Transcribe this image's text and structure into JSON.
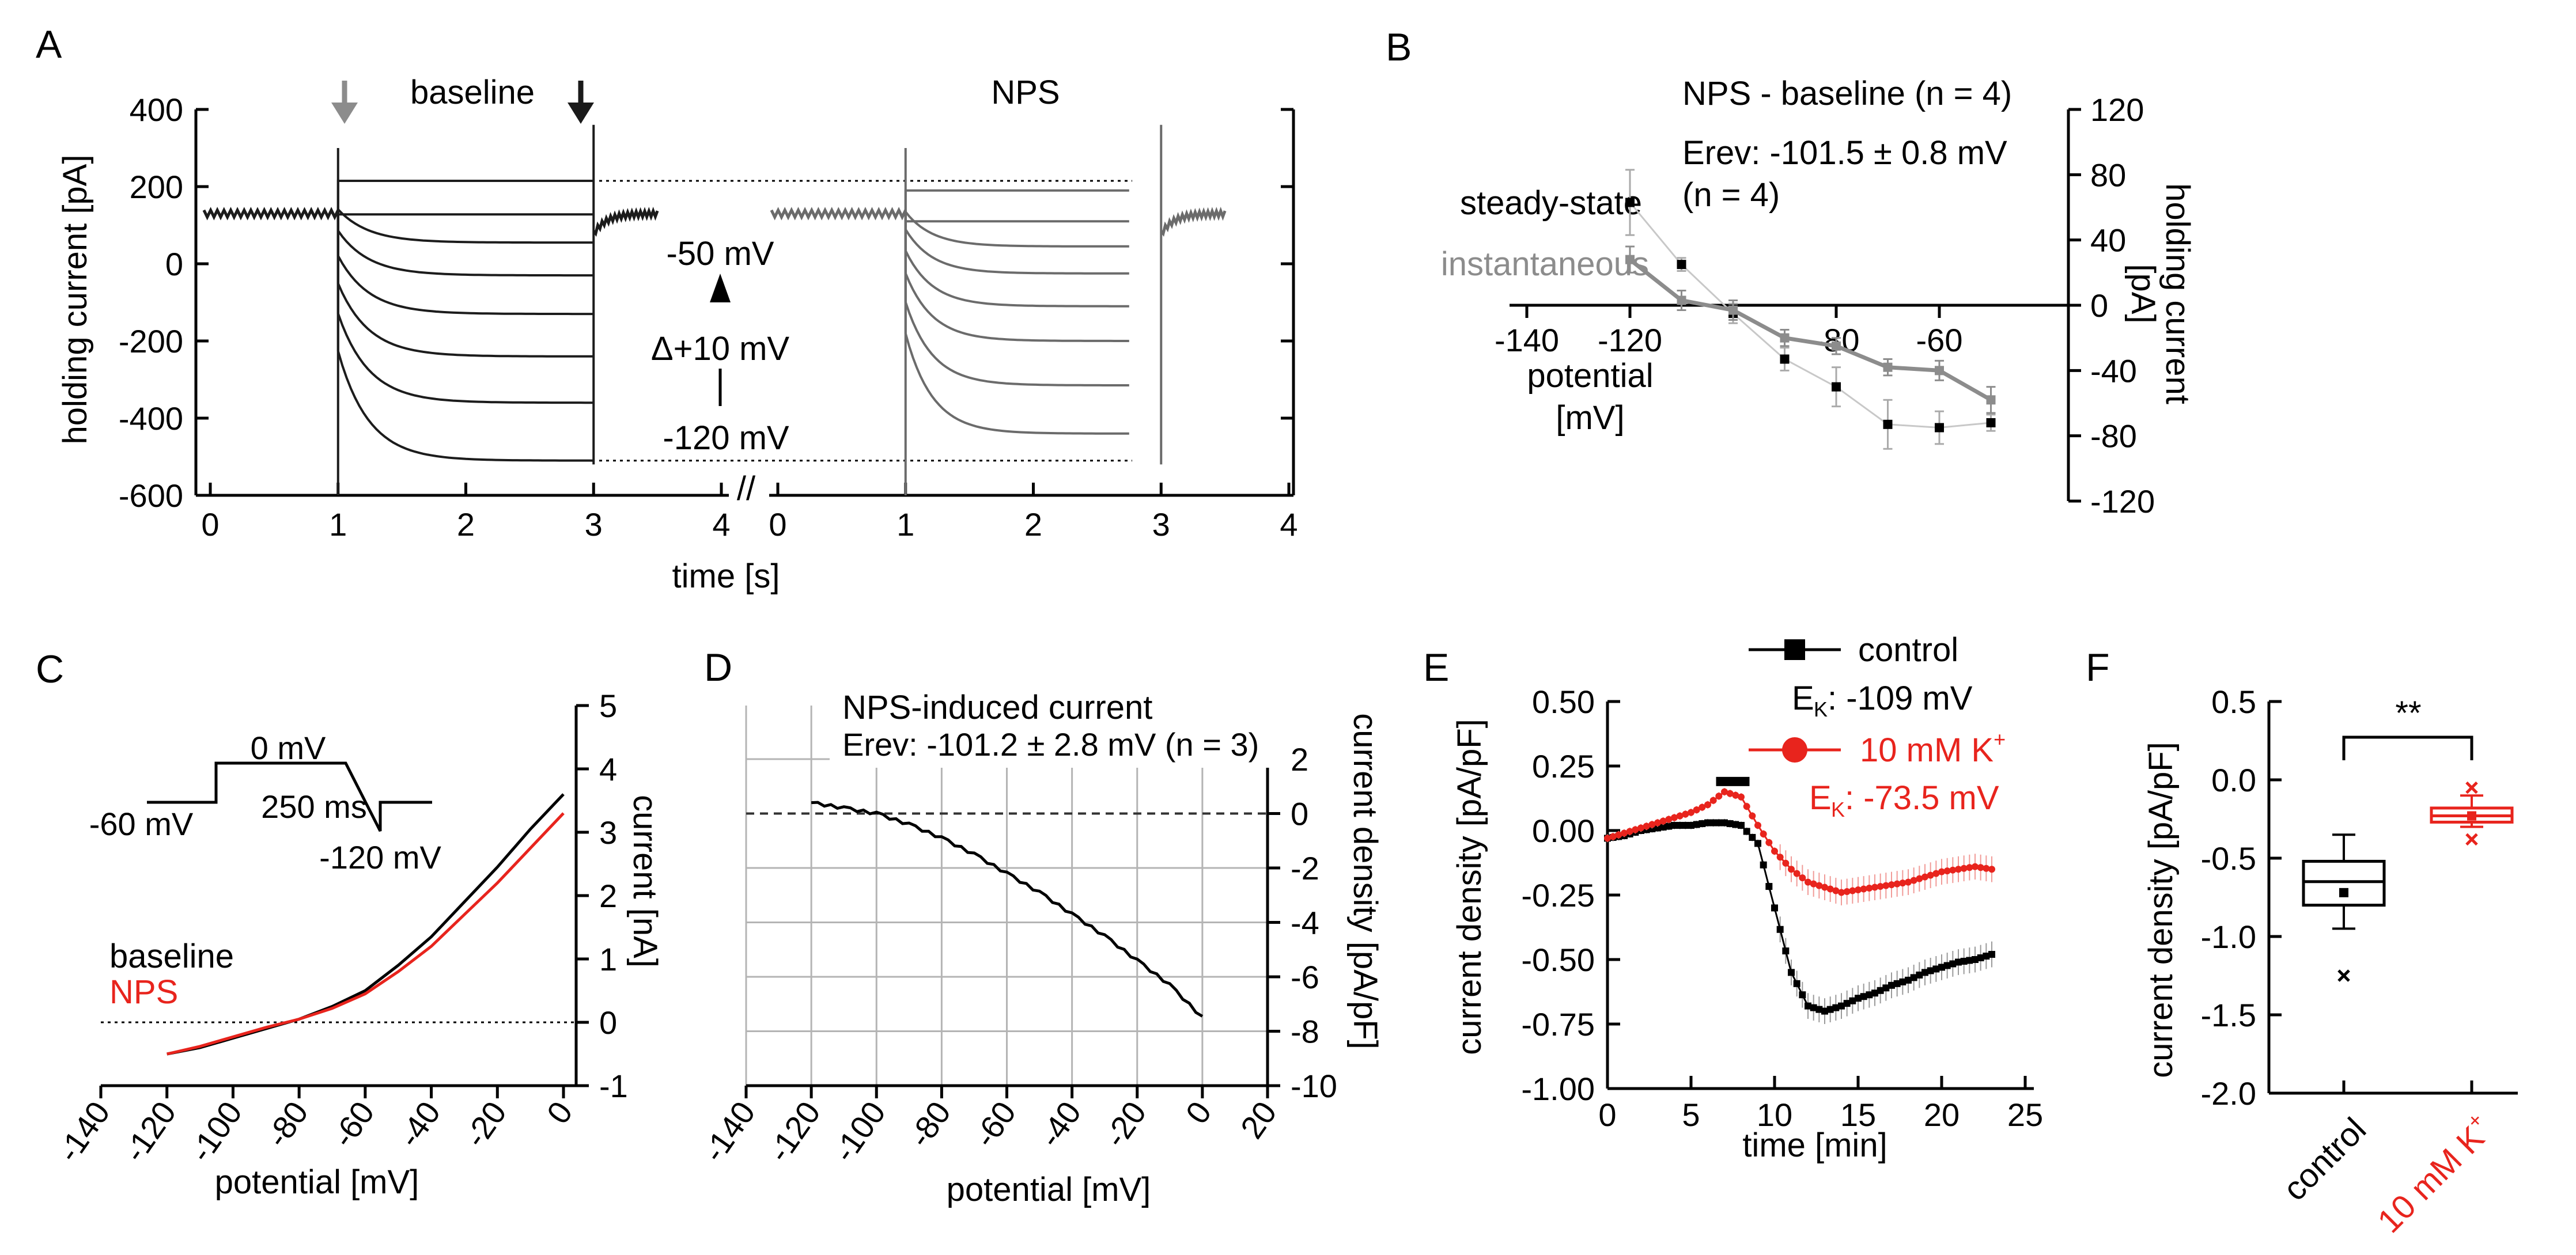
{
  "figure": {
    "panels": {
      "a": "A",
      "b": "B",
      "c": "C",
      "d": "D",
      "e": "E",
      "f": "F"
    }
  },
  "chart_data": [
    {
      "panel": "A",
      "type": "line",
      "title_left": "baseline",
      "title_right": "NPS",
      "xlabel": "time [s]",
      "ylabel": "holding current [pA]",
      "xlim": [
        0,
        4
      ],
      "ylim": [
        -600,
        400
      ],
      "xticks": [
        "0",
        "1",
        "2",
        "3",
        "4"
      ],
      "yticks": [
        "400",
        "200",
        "0",
        "-200",
        "-400",
        "-600"
      ],
      "step_start_s": 1,
      "step_end_s": 3,
      "holding_level_pA": 130,
      "baseline_steady_pA": [
        215,
        128,
        55,
        -30,
        -130,
        -240,
        -360,
        -510
      ],
      "nps_steady_pA": [
        190,
        110,
        45,
        -25,
        -110,
        -200,
        -315,
        -440
      ],
      "protocol_annotation": {
        "top": "-50 mV",
        "step": "Δ+10 mV",
        "bottom": "-120 mV"
      },
      "axis_break": "//",
      "arrow_colors": {
        "baseline": "#8c8c8c",
        "nps": "#1a1a1a"
      }
    },
    {
      "panel": "B",
      "type": "line",
      "title": "NPS - baseline (n = 4)",
      "annotation_erev": "Erev: -101.5 ± 0.8 mV",
      "annotation_n": "(n = 4)",
      "xlabel_line1": "potential",
      "xlabel_line2": "[mV]",
      "ylabel_line1": "holding current",
      "ylabel_line2": "[pA]",
      "xlim": [
        -140,
        -40
      ],
      "ylim": [
        -120,
        120
      ],
      "xticks": [
        "-140",
        "-120",
        "-80",
        "-60"
      ],
      "yticks": [
        "120",
        "80",
        "40",
        "0",
        "-40",
        "-80",
        "-120"
      ],
      "series": [
        {
          "name": "steady-state",
          "color": "#000000",
          "x": [
            -120,
            -110,
            -100,
            -90,
            -80,
            -70,
            -60,
            -50
          ],
          "y": [
            63,
            25,
            -5,
            -33,
            -50,
            -73,
            -75,
            -72
          ],
          "err": [
            20,
            4,
            6,
            7,
            12,
            15,
            10,
            5
          ]
        },
        {
          "name": "instantaneous",
          "color": "#8c8c8c",
          "x": [
            -120,
            -110,
            -100,
            -90,
            -80,
            -70,
            -60,
            -50
          ],
          "y": [
            28,
            3,
            -3,
            -20,
            -25,
            -38,
            -40,
            -58
          ],
          "err": [
            8,
            6,
            6,
            5,
            5,
            5,
            6,
            8
          ]
        }
      ]
    },
    {
      "panel": "C",
      "type": "line",
      "xlabel": "potential [mV]",
      "ylabel": "current [nA]",
      "xlim": [
        -140,
        0
      ],
      "ylim": [
        -1,
        5
      ],
      "xticks": [
        "-140",
        "-120",
        "-100",
        "-80",
        "-60",
        "-40",
        "-20",
        "0"
      ],
      "yticks": [
        "5",
        "4",
        "3",
        "2",
        "1",
        "0",
        "-1"
      ],
      "protocol_labels": {
        "hold": "-60 mV",
        "step": "0 mV",
        "duration": "250 ms",
        "end": "-120 mV"
      },
      "series": [
        {
          "name": "baseline",
          "color": "#000000",
          "x": [
            -120,
            -110,
            -100,
            -90,
            -80,
            -70,
            -60,
            -50,
            -40,
            -30,
            -20,
            -10,
            0
          ],
          "y": [
            -0.5,
            -0.4,
            -0.25,
            -0.1,
            0.05,
            0.25,
            0.5,
            0.9,
            1.35,
            1.9,
            2.45,
            3.05,
            3.6
          ]
        },
        {
          "name": "NPS",
          "color": "#e8241d",
          "x": [
            -120,
            -110,
            -100,
            -90,
            -80,
            -70,
            -60,
            -50,
            -40,
            -30,
            -20,
            -10,
            0
          ],
          "y": [
            -0.5,
            -0.38,
            -0.23,
            -0.08,
            0.05,
            0.22,
            0.45,
            0.8,
            1.2,
            1.7,
            2.2,
            2.75,
            3.3
          ]
        }
      ]
    },
    {
      "panel": "D",
      "type": "line",
      "title": "NPS-induced current",
      "annotation_erev": "Erev: -101.2 ± 2.8 mV (n = 3)",
      "xlabel": "potential [mV]",
      "ylabel": "current density [pA/pF]",
      "xlim": [
        -140,
        20
      ],
      "ylim": [
        -10,
        2
      ],
      "xticks": [
        "-140",
        "-120",
        "-100",
        "-80",
        "-60",
        "-40",
        "-20",
        "0",
        "20"
      ],
      "yticks": [
        "2",
        "0",
        "-2",
        "-4",
        "-6",
        "-8",
        "-10"
      ],
      "series": [
        {
          "name": "NPS-induced current",
          "color": "#000000",
          "x": [
            -120,
            -110,
            -100,
            -90,
            -80,
            -70,
            -60,
            -50,
            -40,
            -30,
            -20,
            -10,
            0
          ],
          "y": [
            0.4,
            0.2,
            0.0,
            -0.4,
            -0.9,
            -1.5,
            -2.2,
            -2.9,
            -3.7,
            -4.5,
            -5.4,
            -6.3,
            -7.5
          ]
        }
      ]
    },
    {
      "panel": "E",
      "type": "line",
      "xlabel": "time [min]",
      "ylabel": "current density [pA/pF]",
      "xlim": [
        0,
        25
      ],
      "ylim": [
        -1.0,
        0.5
      ],
      "xticks": [
        "0",
        "5",
        "10",
        "15",
        "20",
        "25"
      ],
      "yticks": [
        "0.50",
        "0.25",
        "0.00",
        "-0.25",
        "-0.50",
        "-0.75",
        "-1.00"
      ],
      "application_bar_min": [
        6.5,
        8.5
      ],
      "series": [
        {
          "name": "control",
          "color": "#000000",
          "annotation": "EK: -109 mV",
          "x": [
            0,
            1,
            2,
            3,
            4,
            5,
            6,
            7,
            8,
            9,
            10,
            11,
            12,
            13,
            14,
            15,
            16,
            17,
            18,
            19,
            20,
            21,
            22,
            23
          ],
          "y": [
            -0.03,
            -0.02,
            0.0,
            0.01,
            0.02,
            0.02,
            0.03,
            0.03,
            0.02,
            -0.05,
            -0.3,
            -0.55,
            -0.68,
            -0.7,
            -0.68,
            -0.65,
            -0.63,
            -0.6,
            -0.58,
            -0.55,
            -0.53,
            -0.51,
            -0.5,
            -0.48
          ]
        },
        {
          "name": "10 mM K+",
          "color": "#e8241d",
          "annotation": "EK: -73.5 mV",
          "x": [
            0,
            1,
            2,
            3,
            4,
            5,
            6,
            7,
            8,
            9,
            10,
            11,
            12,
            13,
            14,
            15,
            16,
            17,
            18,
            19,
            20,
            21,
            22,
            23
          ],
          "y": [
            -0.03,
            -0.01,
            0.01,
            0.03,
            0.05,
            0.07,
            0.1,
            0.15,
            0.13,
            0.02,
            -0.08,
            -0.15,
            -0.2,
            -0.22,
            -0.24,
            -0.23,
            -0.22,
            -0.21,
            -0.2,
            -0.18,
            -0.16,
            -0.15,
            -0.14,
            -0.15
          ]
        }
      ],
      "legend_labels": {
        "control": "control",
        "k_main": "10 mM K",
        "k_sup": "+",
        "ek_control": "-109 mV",
        "ek_k": "-73.5 mV"
      }
    },
    {
      "panel": "F",
      "type": "box",
      "ylabel": "current density [pA/pF]",
      "ylim": [
        -2.0,
        0.5
      ],
      "yticks": [
        "0.5",
        "0.0",
        "-0.5",
        "-1.0",
        "-1.5",
        "-2.0"
      ],
      "significance": "**",
      "categories": [
        "control",
        "10 mM K+"
      ],
      "colors": [
        "#000000",
        "#e8241d"
      ],
      "boxes": [
        {
          "whisker_low": -0.95,
          "q1": -0.8,
          "median": -0.65,
          "q3": -0.52,
          "whisker_high": -0.35,
          "mean": -0.72,
          "outliers": [
            -1.25
          ]
        },
        {
          "whisker_low": -0.3,
          "q1": -0.27,
          "median": -0.23,
          "q3": -0.18,
          "whisker_high": -0.1,
          "mean": -0.23,
          "outliers": [
            -0.05,
            -0.38
          ]
        }
      ],
      "xtick_labels": {
        "control": "control",
        "k_main": "10 mM K",
        "k_sup": "+"
      }
    }
  ]
}
